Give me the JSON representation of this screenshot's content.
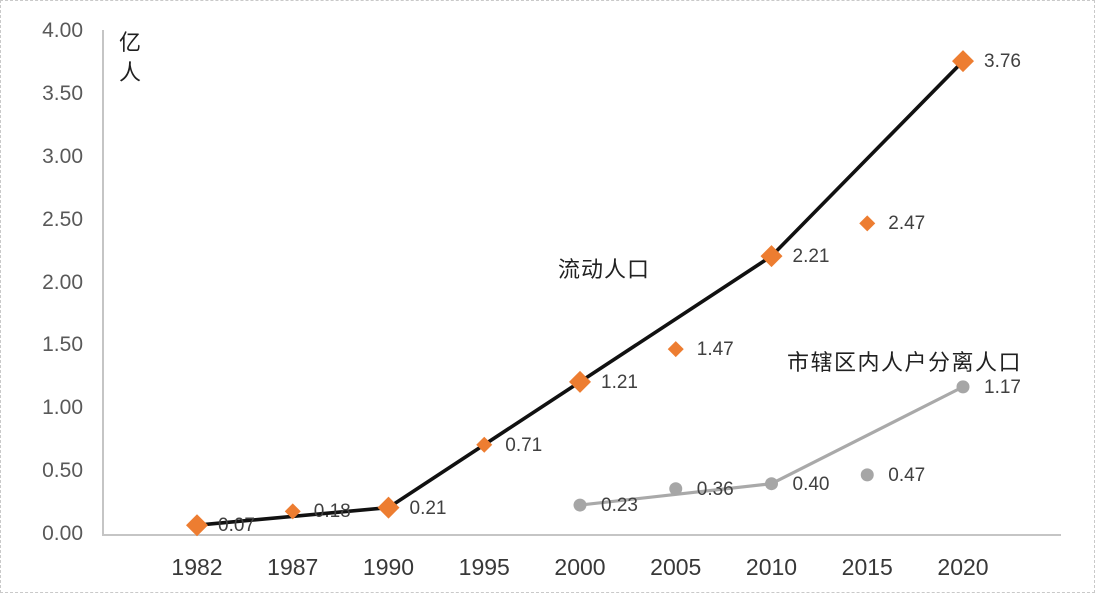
{
  "chart_data": {
    "type": "line",
    "title": "",
    "unit_label": "亿人",
    "categories": [
      "1982",
      "1987",
      "1990",
      "1995",
      "2000",
      "2005",
      "2010",
      "2015",
      "2020"
    ],
    "y_ticks": [
      "0.00",
      "0.50",
      "1.00",
      "1.50",
      "2.00",
      "2.50",
      "3.00",
      "3.50",
      "4.00"
    ],
    "ylim": [
      0,
      4
    ],
    "y_tick_step": 0.5,
    "grid": false,
    "legend": "inline-text-annotations",
    "series": [
      {
        "name": "流动人口",
        "marker": "diamond",
        "marker_color": "#ED7D31",
        "line_color": "#111111",
        "x": [
          "1982",
          "1987",
          "1990",
          "1995",
          "2000",
          "2005",
          "2010",
          "2015",
          "2020"
        ],
        "values": [
          0.07,
          0.18,
          0.21,
          0.71,
          1.21,
          1.47,
          2.21,
          2.47,
          3.76
        ],
        "labels": [
          "0.07",
          "0.18",
          "0.21",
          "0.71",
          "1.21",
          "1.47",
          "2.21",
          "2.47",
          "3.76"
        ],
        "line_connects": [
          "1982",
          "1990",
          "2000",
          "2010",
          "2020"
        ]
      },
      {
        "name": "市辖区内人户分离人口",
        "marker": "circle",
        "marker_color": "#A6A6A6",
        "line_color": "#A9A9A9",
        "x": [
          "2000",
          "2005",
          "2010",
          "2015",
          "2020"
        ],
        "values": [
          0.23,
          0.36,
          0.4,
          0.47,
          1.17
        ],
        "labels": [
          "0.23",
          "0.36",
          "0.40",
          "0.47",
          "1.17"
        ],
        "line_connects": [
          "2000",
          "2010",
          "2020"
        ]
      }
    ],
    "colors": {
      "axis_line": "#C5C5C5",
      "y_tick_text": "#595959",
      "x_tick_text": "#383838",
      "data_label_text": "#404040",
      "annotation_text": "#212121",
      "background": "#FFFFFF"
    }
  }
}
